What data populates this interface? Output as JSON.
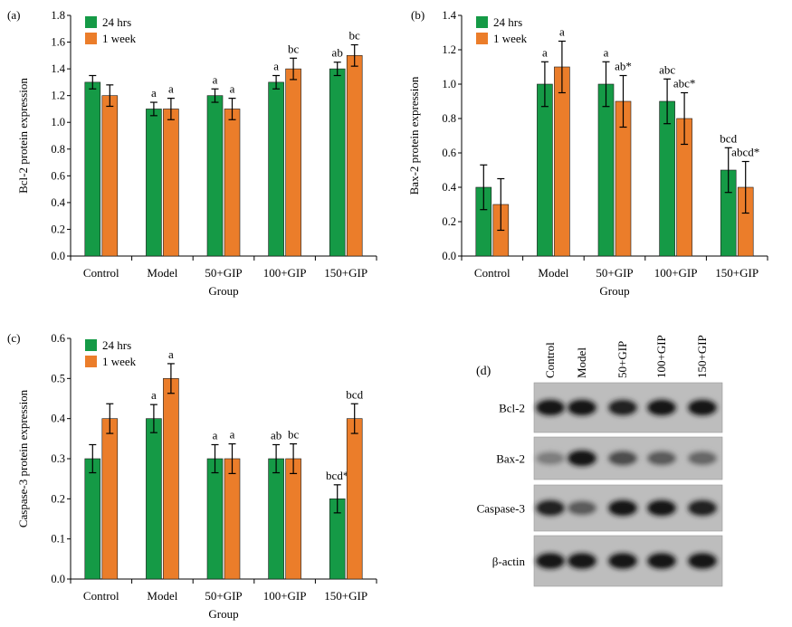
{
  "colors": {
    "green": "#159a46",
    "orange": "#eb7d2a",
    "axis": "#000000"
  },
  "chart_data": [
    {
      "panel": "(a)",
      "type": "bar",
      "ylabel": "Bcl-2 protein expression",
      "xlabel": "Group",
      "categories": [
        "Control",
        "Model",
        "50+GIP",
        "100+GIP",
        "150+GIP"
      ],
      "ylim": [
        0,
        1.8
      ],
      "yticks": [
        "0.0",
        "0.2",
        "0.4",
        "0.6",
        "0.8",
        "1.0",
        "1.2",
        "1.4",
        "1.6",
        "1.8"
      ],
      "legend": "top-left",
      "series": [
        {
          "name": "24 hrs",
          "values": [
            1.3,
            1.1,
            1.2,
            1.3,
            1.4
          ],
          "errors": [
            0.05,
            0.05,
            0.05,
            0.05,
            0.05
          ],
          "annotations": [
            "",
            "a",
            "a",
            "a",
            "ab"
          ]
        },
        {
          "name": "1 week",
          "values": [
            1.2,
            1.1,
            1.1,
            1.4,
            1.5
          ],
          "errors": [
            0.08,
            0.08,
            0.08,
            0.08,
            0.08
          ],
          "annotations": [
            "",
            "a",
            "a",
            "bc",
            "bc"
          ]
        }
      ]
    },
    {
      "panel": "(b)",
      "type": "bar",
      "ylabel": "Bax-2 protein expression",
      "xlabel": "Group",
      "categories": [
        "Control",
        "Model",
        "50+GIP",
        "100+GIP",
        "150+GIP"
      ],
      "ylim": [
        0,
        1.4
      ],
      "yticks": [
        "0.0",
        "0.2",
        "0.4",
        "0.6",
        "0.8",
        "1.0",
        "1.2",
        "1.4"
      ],
      "legend": "top-left",
      "series": [
        {
          "name": "24 hrs",
          "values": [
            0.4,
            1.0,
            1.0,
            0.9,
            0.5
          ],
          "errors": [
            0.13,
            0.13,
            0.13,
            0.13,
            0.13
          ],
          "annotations": [
            "",
            "a",
            "a",
            "abc",
            "bcd"
          ]
        },
        {
          "name": "1 week",
          "values": [
            0.3,
            1.1,
            0.9,
            0.8,
            0.4
          ],
          "errors": [
            0.15,
            0.15,
            0.15,
            0.15,
            0.15
          ],
          "annotations": [
            "",
            "a",
            "ab*",
            "abc*",
            "abcd*"
          ]
        }
      ]
    },
    {
      "panel": "(c)",
      "type": "bar",
      "ylabel": "Caspase-3 protein expression",
      "xlabel": "Group",
      "categories": [
        "Control",
        "Model",
        "50+GIP",
        "100+GIP",
        "150+GIP"
      ],
      "ylim": [
        0,
        0.6
      ],
      "yticks": [
        "0.0",
        "0.1",
        "0.2",
        "0.3",
        "0.4",
        "0.5",
        "0.6"
      ],
      "legend": "top-left",
      "series": [
        {
          "name": "24 hrs",
          "values": [
            0.3,
            0.4,
            0.3,
            0.3,
            0.2
          ],
          "errors": [
            0.035,
            0.035,
            0.035,
            0.035,
            0.035
          ],
          "annotations": [
            "",
            "a",
            "a",
            "ab",
            "bcd*"
          ]
        },
        {
          "name": "1 week",
          "values": [
            0.4,
            0.5,
            0.3,
            0.3,
            0.4
          ],
          "errors": [
            0.037,
            0.037,
            0.037,
            0.037,
            0.037
          ],
          "annotations": [
            "",
            "a",
            "a",
            "bc",
            "bcd"
          ]
        }
      ]
    }
  ],
  "blot": {
    "label": "(d)",
    "lanes": [
      "Control",
      "Model",
      "50+GIP",
      "100+GIP",
      "150+GIP"
    ],
    "rows": [
      {
        "name": "Bcl-2",
        "intensity": [
          0.92,
          0.92,
          0.88,
          0.94,
          0.92
        ]
      },
      {
        "name": "Bax-2",
        "intensity": [
          0.35,
          0.92,
          0.62,
          0.55,
          0.48
        ]
      },
      {
        "name": "Caspase-3",
        "intensity": [
          0.88,
          0.55,
          0.92,
          0.92,
          0.88
        ]
      },
      {
        "name": "β-actin",
        "intensity": [
          0.92,
          0.92,
          0.92,
          0.92,
          0.92
        ]
      }
    ]
  }
}
